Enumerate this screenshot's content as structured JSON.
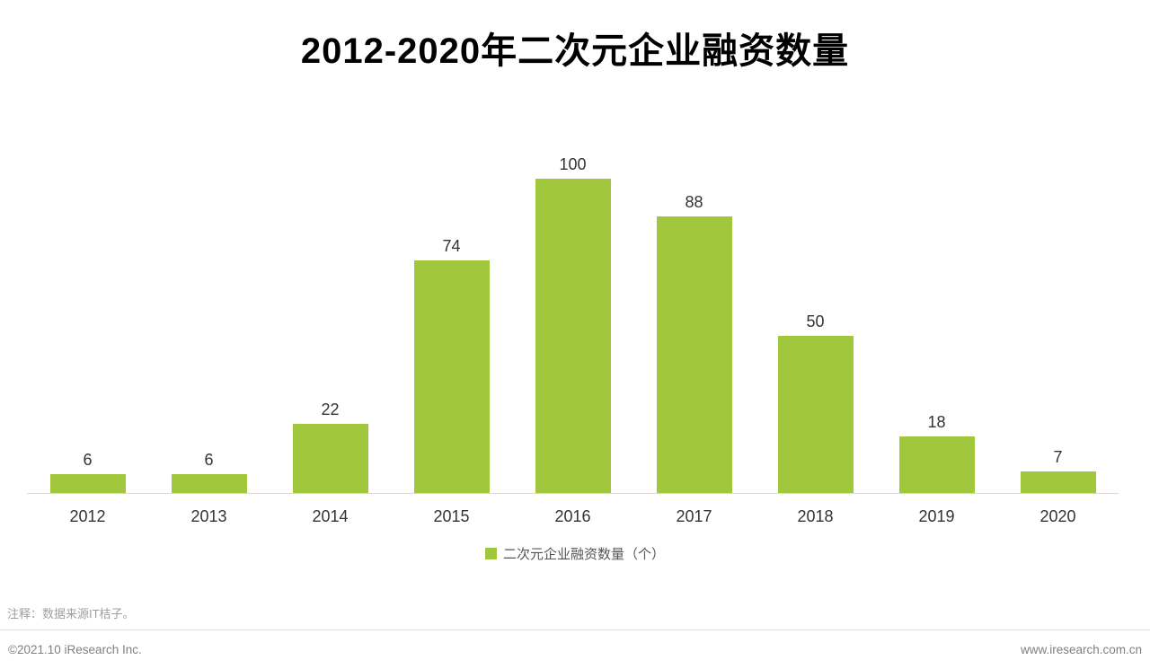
{
  "title": "2012-2020年二次元企业融资数量",
  "chart_data": {
    "type": "bar",
    "categories": [
      "2012",
      "2013",
      "2014",
      "2015",
      "2016",
      "2017",
      "2018",
      "2019",
      "2020"
    ],
    "values": [
      6,
      6,
      22,
      74,
      100,
      88,
      50,
      18,
      7
    ],
    "title": "2012-2020年二次元企业融资数量",
    "xlabel": "",
    "ylabel": "",
    "ylim": [
      0,
      100
    ],
    "grid": false,
    "legend": [
      "二次元企业融资数量（个）"
    ],
    "legend_position": "bottom",
    "value_labels_shown": true,
    "bar_color": "#A1C83C"
  },
  "legend": {
    "label": "二次元企业融资数量（个）"
  },
  "colors": {
    "bar": "#A1C83C",
    "value_label": "#333333",
    "axis_line": "#d9d9d9",
    "note_text": "#9e9e9e",
    "footer_text": "#808080"
  },
  "note": "注释：数据来源IT桔子。",
  "footer": {
    "copyright": "©2021.10 iResearch Inc.",
    "website": "www.iresearch.com.cn"
  }
}
